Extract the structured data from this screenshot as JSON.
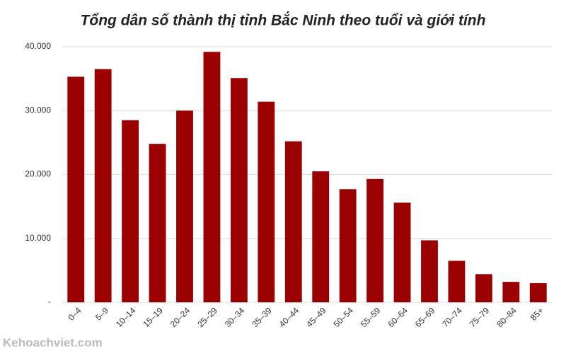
{
  "chart_data": {
    "type": "bar",
    "title": "Tổng dân số thành thị tỉnh Bắc Ninh theo tuổi và giới tính",
    "watermark": "Kehoachviet.com",
    "categories": [
      "0–4",
      "5–9",
      "10–14",
      "15–19",
      "20–24",
      "25–29",
      "30–34",
      "35–39",
      "40–44",
      "45–49",
      "50–54",
      "55–59",
      "60–64",
      "65–69",
      "70–74",
      "75–79",
      "80–84",
      "85+"
    ],
    "values": [
      35300,
      36500,
      28500,
      24800,
      30000,
      39200,
      35100,
      31400,
      25200,
      20500,
      17700,
      19300,
      15600,
      9700,
      6500,
      4400,
      3200,
      3000
    ],
    "color": "#9b0000",
    "ylim": [
      0,
      40000
    ],
    "yticks": [
      {
        "value": 0,
        "label": "-"
      },
      {
        "value": 10000,
        "label": "10.000"
      },
      {
        "value": 20000,
        "label": "20.000"
      },
      {
        "value": 30000,
        "label": "30.000"
      },
      {
        "value": 40000,
        "label": "40.000"
      }
    ],
    "grid": true
  }
}
